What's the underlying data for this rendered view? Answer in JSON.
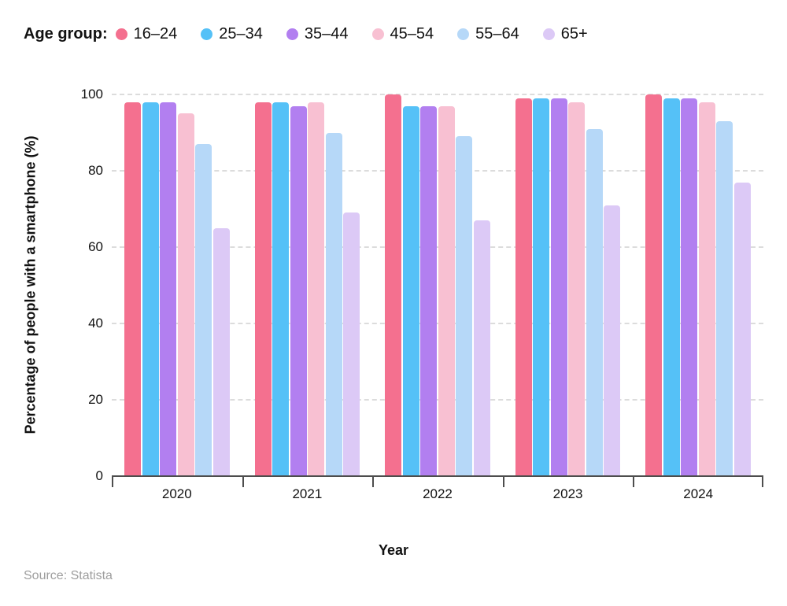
{
  "legend": {
    "title": "Age group:",
    "items": [
      {
        "label": "16–24",
        "color": "#F4708F"
      },
      {
        "label": "25–34",
        "color": "#55C1F7"
      },
      {
        "label": "35–44",
        "color": "#B27FF0"
      },
      {
        "label": "45–54",
        "color": "#F8C0D2"
      },
      {
        "label": "55–64",
        "color": "#B6D8F8"
      },
      {
        "label": "65+",
        "color": "#DCC9F6"
      }
    ]
  },
  "source": {
    "text": "Source: Statista"
  },
  "chart_data": {
    "type": "bar",
    "title": "",
    "categories": [
      "2020",
      "2021",
      "2022",
      "2023",
      "2024"
    ],
    "series": [
      {
        "name": "16–24",
        "color": "#F4708F",
        "values": [
          98,
          98,
          100,
          99,
          100
        ]
      },
      {
        "name": "25–34",
        "color": "#55C1F7",
        "values": [
          98,
          98,
          97,
          99,
          99
        ]
      },
      {
        "name": "35–44",
        "color": "#B27FF0",
        "values": [
          98,
          97,
          97,
          99,
          99
        ]
      },
      {
        "name": "45–54",
        "color": "#F8C0D2",
        "values": [
          95,
          98,
          97,
          98,
          98
        ]
      },
      {
        "name": "55–64",
        "color": "#B6D8F8",
        "values": [
          87,
          90,
          89,
          91,
          93
        ]
      },
      {
        "name": "65+",
        "color": "#DCC9F6",
        "values": [
          65,
          69,
          67,
          71,
          77
        ]
      }
    ],
    "xlabel": "Year",
    "ylabel": "Percentage of people with a smartphone (%)",
    "ylim": [
      0,
      100
    ],
    "yticks": [
      0,
      20,
      40,
      60,
      80,
      100
    ],
    "grid": "horizontal-dashed",
    "legend_position": "top",
    "gridline_color": "#dcdcdc",
    "axis_color": "#4d4d4d",
    "source_text_color": "#9e9e9e"
  }
}
